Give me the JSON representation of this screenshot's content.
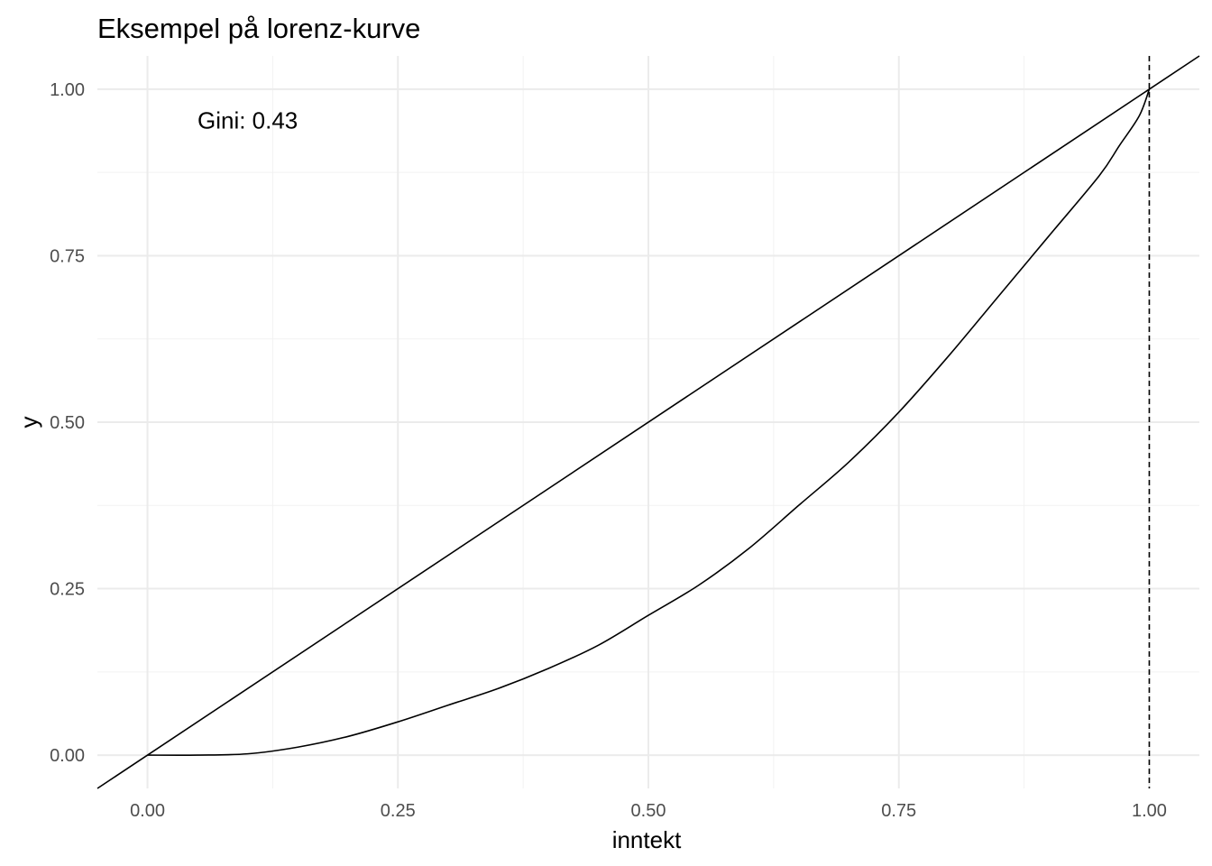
{
  "chart_data": {
    "type": "line",
    "title": "Eksempel på lorenz-kurve",
    "xlabel": "inntekt",
    "ylabel": "y",
    "xlim": [
      -0.05,
      1.05
    ],
    "ylim": [
      -0.05,
      1.05
    ],
    "x_ticks": [
      0,
      0.25,
      0.5,
      0.75,
      1.0
    ],
    "x_tick_labels": [
      "0.00",
      "0.25",
      "0.50",
      "0.75",
      "1.00"
    ],
    "y_ticks": [
      0,
      0.25,
      0.5,
      0.75,
      1.0
    ],
    "y_tick_labels": [
      "0.00",
      "0.25",
      "0.50",
      "0.75",
      "1.00"
    ],
    "grid": true,
    "annotations": [
      {
        "text": "Gini: 0.43",
        "x": 0.1,
        "y": 0.95
      }
    ],
    "reference_lines": [
      {
        "kind": "abline",
        "intercept": 0,
        "slope": 1,
        "style": "solid"
      },
      {
        "kind": "vline",
        "x": 1.0,
        "style": "dashed"
      }
    ],
    "series": [
      {
        "x": [
          0,
          0.05,
          0.1,
          0.15,
          0.2,
          0.25,
          0.3,
          0.35,
          0.4,
          0.45,
          0.5,
          0.55,
          0.6,
          0.65,
          0.7,
          0.75,
          0.8,
          0.85,
          0.9,
          0.95,
          0.97,
          0.99,
          1.0
        ],
        "y": [
          0,
          0,
          0.002,
          0.012,
          0.028,
          0.05,
          0.075,
          0.1,
          0.13,
          0.165,
          0.21,
          0.255,
          0.31,
          0.375,
          0.44,
          0.515,
          0.6,
          0.69,
          0.78,
          0.87,
          0.915,
          0.96,
          1.0
        ]
      }
    ]
  }
}
